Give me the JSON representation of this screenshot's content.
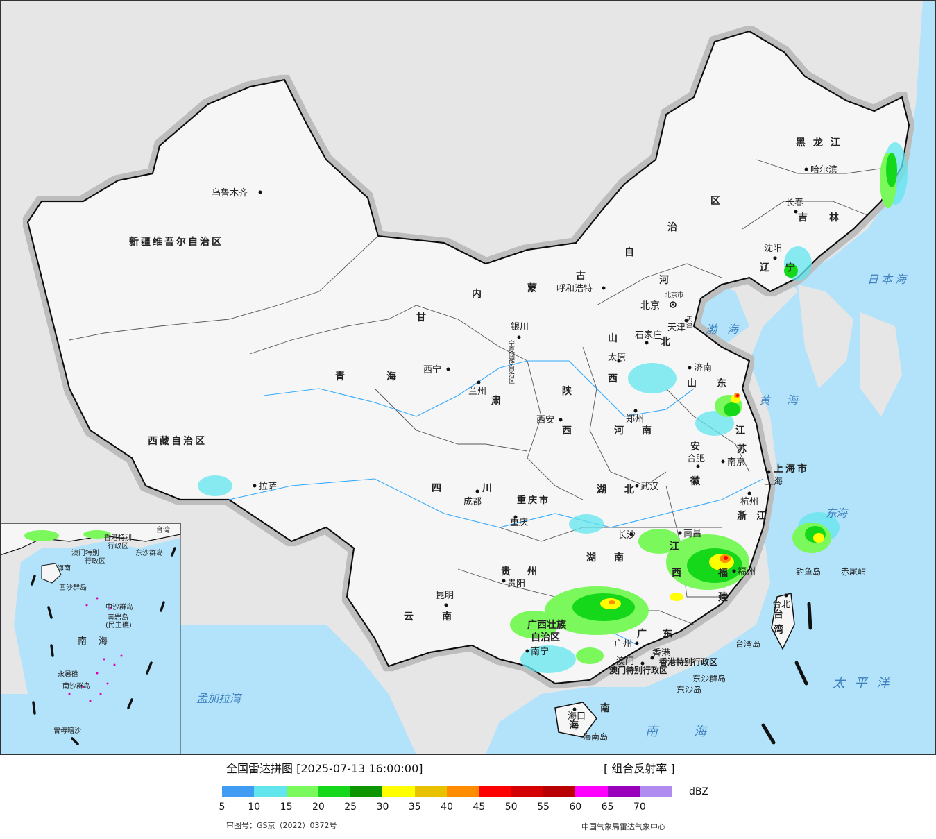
{
  "map": {
    "regions": [
      {
        "name": "新疆维吾尔自治区",
        "cls": "prov"
      },
      {
        "name": "西藏自治区",
        "cls": "prov"
      },
      {
        "name": "青",
        "cls": "prov"
      },
      {
        "name": "海",
        "cls": "prov"
      },
      {
        "name": "甘",
        "cls": "prov"
      },
      {
        "name": "肃",
        "cls": "prov"
      },
      {
        "name": "内",
        "cls": "prov"
      },
      {
        "name": "蒙",
        "cls": "prov"
      },
      {
        "name": "古",
        "cls": "prov"
      },
      {
        "name": "自",
        "cls": "prov"
      },
      {
        "name": "治",
        "cls": "prov"
      },
      {
        "name": "区",
        "cls": "prov"
      },
      {
        "name": "黑 龙 江",
        "cls": "prov"
      },
      {
        "name": "吉",
        "cls": "prov"
      },
      {
        "name": "林",
        "cls": "prov"
      },
      {
        "name": "辽",
        "cls": "prov"
      },
      {
        "name": "宁",
        "cls": "prov"
      },
      {
        "name": "河",
        "cls": "prov"
      },
      {
        "name": "北",
        "cls": "prov"
      },
      {
        "name": "山",
        "cls": "prov"
      },
      {
        "name": "西",
        "cls": "prov"
      },
      {
        "name": "陕",
        "cls": "prov"
      },
      {
        "name": "西",
        "cls": "prov"
      },
      {
        "name": "河",
        "cls": "prov"
      },
      {
        "name": "南",
        "cls": "prov"
      },
      {
        "name": "山",
        "cls": "prov"
      },
      {
        "name": "东",
        "cls": "prov"
      },
      {
        "name": "江",
        "cls": "prov"
      },
      {
        "name": "苏",
        "cls": "prov"
      },
      {
        "name": "安",
        "cls": "prov"
      },
      {
        "name": "徽",
        "cls": "prov"
      },
      {
        "name": "上海市",
        "cls": "prov"
      },
      {
        "name": "浙",
        "cls": "prov"
      },
      {
        "name": "江",
        "cls": "prov"
      },
      {
        "name": "四",
        "cls": "prov"
      },
      {
        "name": "川",
        "cls": "prov"
      },
      {
        "name": "重庆市",
        "cls": "prov"
      },
      {
        "name": "湖",
        "cls": "prov"
      },
      {
        "name": "北",
        "cls": "prov"
      },
      {
        "name": "湖",
        "cls": "prov"
      },
      {
        "name": "南",
        "cls": "prov"
      },
      {
        "name": "江",
        "cls": "prov"
      },
      {
        "name": "西",
        "cls": "prov"
      },
      {
        "name": "福",
        "cls": "prov"
      },
      {
        "name": "建",
        "cls": "prov"
      },
      {
        "name": "贵",
        "cls": "prov"
      },
      {
        "name": "州",
        "cls": "prov"
      },
      {
        "name": "云",
        "cls": "prov"
      },
      {
        "name": "南",
        "cls": "prov"
      },
      {
        "name": "广西壮族",
        "cls": "prov"
      },
      {
        "name": "自治区",
        "cls": "prov"
      },
      {
        "name": "广",
        "cls": "prov"
      },
      {
        "name": "东",
        "cls": "prov"
      },
      {
        "name": "海",
        "cls": "prov"
      },
      {
        "name": "南",
        "cls": "prov"
      },
      {
        "name": "台",
        "cls": "prov"
      },
      {
        "name": "湾",
        "cls": "prov"
      },
      {
        "name": "宁夏回族自治区",
        "cls": "prov-small"
      },
      {
        "name": "香港特别行政区",
        "cls": "prov-small"
      },
      {
        "name": "澳门特别行政区",
        "cls": "prov-small"
      },
      {
        "name": "天津",
        "cls": "prov-small"
      },
      {
        "name": "北京市",
        "cls": "prov-small"
      }
    ],
    "cities": [
      {
        "name": "乌鲁木齐"
      },
      {
        "name": "拉萨"
      },
      {
        "name": "西宁"
      },
      {
        "name": "兰州"
      },
      {
        "name": "银川"
      },
      {
        "name": "呼和浩特"
      },
      {
        "name": "北京"
      },
      {
        "name": "天津"
      },
      {
        "name": "石家庄"
      },
      {
        "name": "太原"
      },
      {
        "name": "济南"
      },
      {
        "name": "郑州"
      },
      {
        "name": "西安"
      },
      {
        "name": "成都"
      },
      {
        "name": "重庆"
      },
      {
        "name": "武汉"
      },
      {
        "name": "合肥"
      },
      {
        "name": "南京"
      },
      {
        "name": "上海"
      },
      {
        "name": "杭州"
      },
      {
        "name": "长沙"
      },
      {
        "name": "南昌"
      },
      {
        "name": "福州"
      },
      {
        "name": "贵阳"
      },
      {
        "name": "昆明"
      },
      {
        "name": "南宁"
      },
      {
        "name": "广州"
      },
      {
        "name": "香港"
      },
      {
        "name": "澳门"
      },
      {
        "name": "海口"
      },
      {
        "name": "台北"
      },
      {
        "name": "沈阳"
      },
      {
        "name": "长春"
      },
      {
        "name": "哈尔滨"
      }
    ],
    "islands": [
      "钓鱼岛",
      "赤尾屿",
      "台湾岛",
      "东沙群岛",
      "东沙岛",
      "海南岛"
    ],
    "seas": [
      "渤",
      "海",
      "黄",
      "海",
      "东",
      "海",
      "日本海",
      "太 平 洋",
      "南",
      "海",
      "孟加拉湾"
    ],
    "inset": {
      "labels": [
        "香港特别",
        "行政区",
        "澳门特别",
        "行政区",
        "东沙群岛",
        "海南",
        "西沙群岛",
        "中沙群岛",
        "黄岩岛",
        "(民主礁)",
        "南",
        "海",
        "永暑礁",
        "南沙群岛",
        "曾母暗沙",
        "台湾"
      ]
    }
  },
  "legend": {
    "title": "全国雷达拼图 [2025-07-13 16:00:00]",
    "product": "[ 组合反射率 ]",
    "unit": "dBZ",
    "colors": [
      "#3f9cf2",
      "#62e6ee",
      "#7af85c",
      "#15d81a",
      "#0d9500",
      "#ffff00",
      "#e8c200",
      "#ff8c00",
      "#ff0000",
      "#d40000",
      "#b80000",
      "#ff00ff",
      "#9900bb",
      "#b08cf0"
    ],
    "ticks": [
      "5",
      "10",
      "15",
      "20",
      "25",
      "30",
      "35",
      "40",
      "45",
      "50",
      "55",
      "60",
      "65",
      "70"
    ],
    "approval": "审图号：GS京（2022）0372号",
    "source": "中国气象局雷达气象中心"
  }
}
